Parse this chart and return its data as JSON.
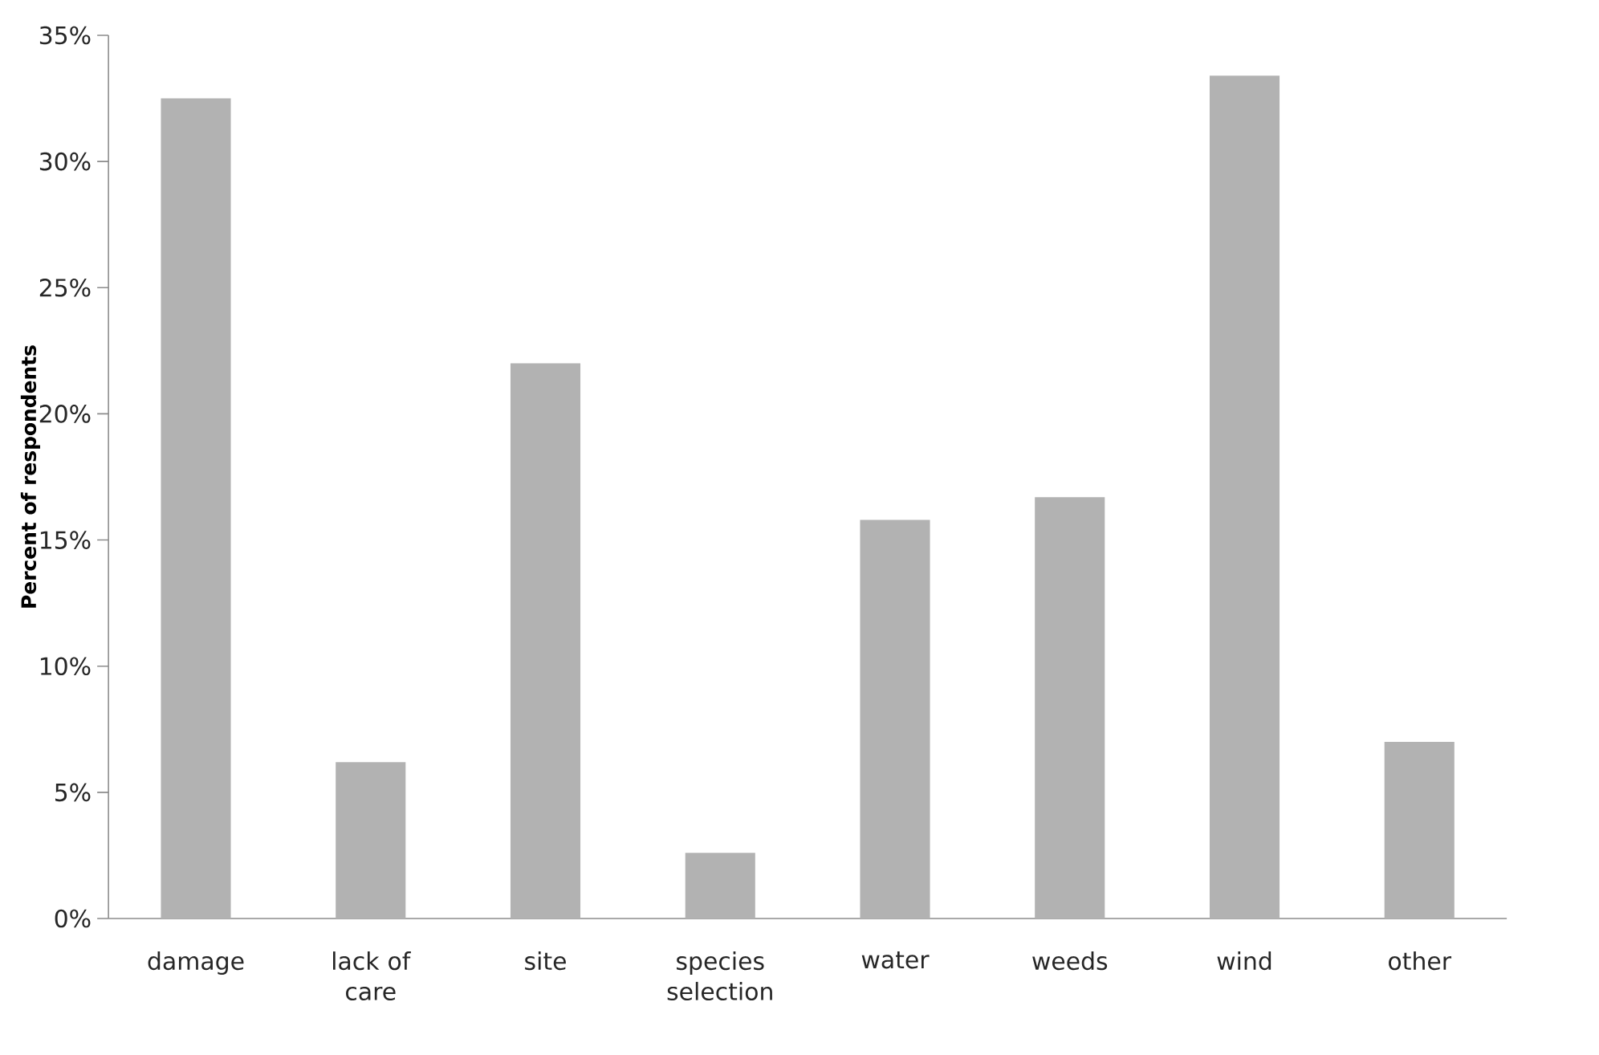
{
  "chart_data": {
    "type": "bar",
    "ylabel": "Percent of respondents",
    "categories": [
      "damage",
      "lack of care",
      "site",
      "species selection",
      "water",
      "weeds",
      "wind",
      "other"
    ],
    "values": [
      32.5,
      6.2,
      22.0,
      2.6,
      15.8,
      16.7,
      33.4,
      7.0
    ],
    "color": "#b2b2b2",
    "ylim": [
      0,
      35
    ],
    "yticks": [
      {
        "value": 0,
        "label": "0%"
      },
      {
        "value": 5,
        "label": "5%"
      },
      {
        "value": 10,
        "label": "10%"
      },
      {
        "value": 15,
        "label": "15%"
      },
      {
        "value": 20,
        "label": "20%"
      },
      {
        "value": 25,
        "label": "25%"
      },
      {
        "value": 30,
        "label": "30%"
      },
      {
        "value": 35,
        "label": "35%"
      }
    ],
    "grid": false
  }
}
